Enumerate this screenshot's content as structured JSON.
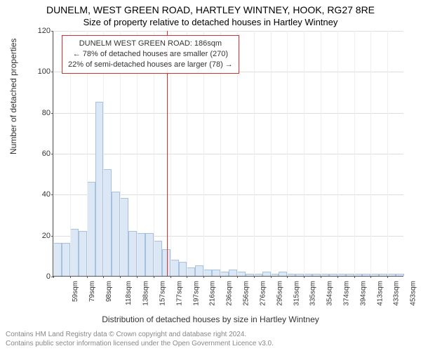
{
  "titles": {
    "line1": "DUNELM, WEST GREEN ROAD, HARTLEY WINTNEY, HOOK, RG27 8RE",
    "line2": "Size of property relative to detached houses in Hartley Wintney"
  },
  "axes": {
    "ylabel": "Number of detached properties",
    "xlabel": "Distribution of detached houses by size in Hartley Wintney",
    "ylim": [
      0,
      120
    ],
    "yticks": [
      0,
      20,
      40,
      60,
      80,
      100,
      120
    ],
    "label_fontsize": 12,
    "tick_fontsize": 11,
    "grid_color": "#dddddd",
    "axis_color": "#555555"
  },
  "chart": {
    "type": "histogram",
    "bar_fill": "#dbe7f5",
    "bar_stroke": "#a8c1de",
    "background_color": "#ffffff",
    "bar_width_ratio": 1.0,
    "categories": [
      "59sqm",
      "79sqm",
      "98sqm",
      "118sqm",
      "138sqm",
      "157sqm",
      "177sqm",
      "197sqm",
      "216sqm",
      "236sqm",
      "256sqm",
      "276sqm",
      "295sqm",
      "315sqm",
      "335sqm",
      "354sqm",
      "374sqm",
      "394sqm",
      "413sqm",
      "433sqm",
      "453sqm"
    ],
    "values": [
      16,
      16,
      23,
      22,
      46,
      85,
      52,
      41,
      38,
      22,
      21,
      21,
      17,
      13,
      8,
      7,
      4,
      5,
      3,
      3,
      2,
      3,
      2,
      1,
      1,
      2,
      1,
      2,
      1,
      1,
      1,
      1,
      1,
      1,
      1,
      1,
      1,
      1,
      1,
      1,
      1,
      1
    ]
  },
  "marker": {
    "value_sqm": 186,
    "color": "#cc3333"
  },
  "annotation": {
    "line1": "DUNELM WEST GREEN ROAD: 186sqm",
    "line2": "← 78% of detached houses are smaller (270)",
    "line3": "22% of semi-detached houses are larger (78) →",
    "border_color": "#cc3333",
    "fontsize": 11
  },
  "footer": {
    "line1": "Contains HM Land Registry data © Crown copyright and database right 2024.",
    "line2": "Contains public sector information licensed under the Open Government Licence v3.0.",
    "color": "#888888",
    "fontsize": 10
  }
}
